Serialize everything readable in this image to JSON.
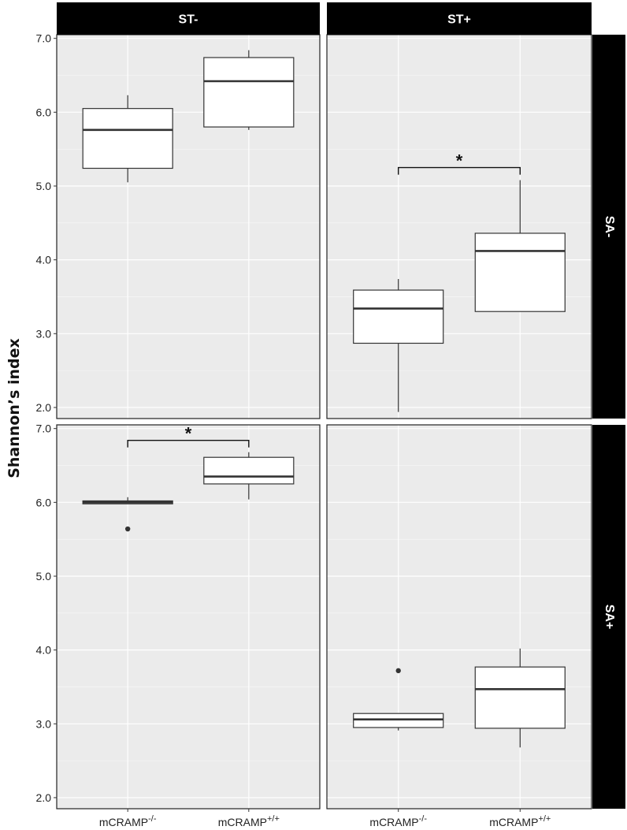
{
  "chart_data": {
    "type": "box",
    "ylabel": "Shannon’s index",
    "ylim": [
      1.85,
      7.05
    ],
    "y_ticks": [
      "2.0",
      "3.0",
      "4.0",
      "5.0",
      "6.0",
      "7.0"
    ],
    "categories": [
      {
        "base": "mCRAMP",
        "sup": "-/-"
      },
      {
        "base": "mCRAMP",
        "sup": "+/+"
      }
    ],
    "col_facets": [
      "ST-",
      "ST+"
    ],
    "row_facets": [
      "SA-",
      "SA+"
    ],
    "panels": [
      {
        "col": "ST-",
        "row": "SA-",
        "boxes": [
          {
            "category": "mCRAMP-/-",
            "lower_whisker": 5.05,
            "q1": 5.24,
            "median": 5.76,
            "q3": 6.05,
            "upper_whisker": 6.23,
            "outliers": []
          },
          {
            "category": "mCRAMP+/+",
            "lower_whisker": 5.76,
            "q1": 5.8,
            "median": 6.42,
            "q3": 6.74,
            "upper_whisker": 6.84,
            "outliers": []
          }
        ],
        "significance": null
      },
      {
        "col": "ST+",
        "row": "SA-",
        "boxes": [
          {
            "category": "mCRAMP-/-",
            "lower_whisker": 1.94,
            "q1": 2.87,
            "median": 3.34,
            "q3": 3.59,
            "upper_whisker": 3.74,
            "outliers": []
          },
          {
            "category": "mCRAMP+/+",
            "lower_whisker": 3.3,
            "q1": 3.3,
            "median": 4.12,
            "q3": 4.36,
            "upper_whisker": 5.08,
            "outliers": []
          }
        ],
        "significance": {
          "label": "*",
          "y": 5.25
        }
      },
      {
        "col": "ST-",
        "row": "SA+",
        "boxes": [
          {
            "category": "mCRAMP-/-",
            "lower_whisker": 5.98,
            "q1": 5.98,
            "median": 6.0,
            "q3": 6.02,
            "upper_whisker": 6.07,
            "outliers": [
              5.64
            ]
          },
          {
            "category": "mCRAMP+/+",
            "lower_whisker": 6.04,
            "q1": 6.25,
            "median": 6.35,
            "q3": 6.61,
            "upper_whisker": 6.68,
            "outliers": []
          }
        ],
        "significance": {
          "label": "*",
          "y": 6.84
        }
      },
      {
        "col": "ST+",
        "row": "SA+",
        "boxes": [
          {
            "category": "mCRAMP-/-",
            "lower_whisker": 2.91,
            "q1": 2.95,
            "median": 3.06,
            "q3": 3.14,
            "upper_whisker": 3.14,
            "outliers": [
              3.72
            ]
          },
          {
            "category": "mCRAMP+/+",
            "lower_whisker": 2.68,
            "q1": 2.94,
            "median": 3.47,
            "q3": 3.77,
            "upper_whisker": 4.02,
            "outliers": []
          }
        ],
        "significance": null
      }
    ],
    "colors": {
      "panel_bg": "#ebebeb",
      "grid": "#ffffff",
      "strip_bg": "#000000",
      "strip_text": "#ffffff",
      "box_fill": "#ffffff",
      "box_stroke": "#333333",
      "median": "#333333",
      "outlier": "#333333"
    },
    "grid": true,
    "legend": "none"
  }
}
